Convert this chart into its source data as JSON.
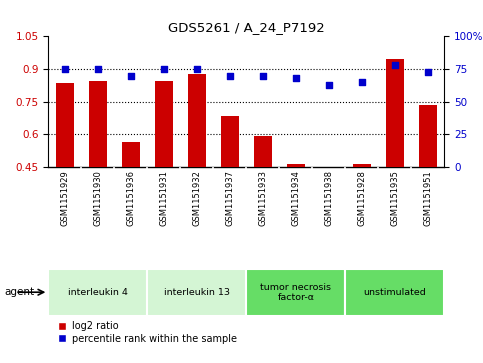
{
  "title": "GDS5261 / A_24_P7192",
  "samples": [
    "GSM1151929",
    "GSM1151930",
    "GSM1151936",
    "GSM1151931",
    "GSM1151932",
    "GSM1151937",
    "GSM1151933",
    "GSM1151934",
    "GSM1151938",
    "GSM1151928",
    "GSM1151935",
    "GSM1151951"
  ],
  "log2_ratio": [
    0.835,
    0.845,
    0.565,
    0.845,
    0.875,
    0.685,
    0.59,
    0.465,
    0.44,
    0.465,
    0.945,
    0.735
  ],
  "percentile_rank": [
    75,
    75,
    70,
    75,
    75,
    70,
    70,
    68,
    63,
    65,
    78,
    73
  ],
  "ylim_left": [
    0.45,
    1.05
  ],
  "ylim_right": [
    0,
    100
  ],
  "yticks_left": [
    0.45,
    0.6,
    0.75,
    0.9,
    1.05
  ],
  "yticks_right": [
    0,
    25,
    50,
    75,
    100
  ],
  "ytick_labels_right": [
    "0",
    "25",
    "50",
    "75",
    "100%"
  ],
  "groups": [
    {
      "label": "interleukin 4",
      "start": 0,
      "end": 2,
      "color": "#d4f5d4"
    },
    {
      "label": "interleukin 13",
      "start": 3,
      "end": 5,
      "color": "#d4f5d4"
    },
    {
      "label": "tumor necrosis\nfactor-α",
      "start": 6,
      "end": 8,
      "color": "#66dd66"
    },
    {
      "label": "unstimulated",
      "start": 9,
      "end": 11,
      "color": "#66dd66"
    }
  ],
  "bar_color": "#cc0000",
  "square_color": "#0000cc",
  "bar_width": 0.55,
  "background_color": "#ffffff",
  "tick_label_color_left": "#cc0000",
  "tick_label_color_right": "#0000cc",
  "sample_bg": "#cccccc",
  "sample_divider": "#ffffff",
  "grid_hlines": [
    0.6,
    0.75,
    0.9
  ]
}
